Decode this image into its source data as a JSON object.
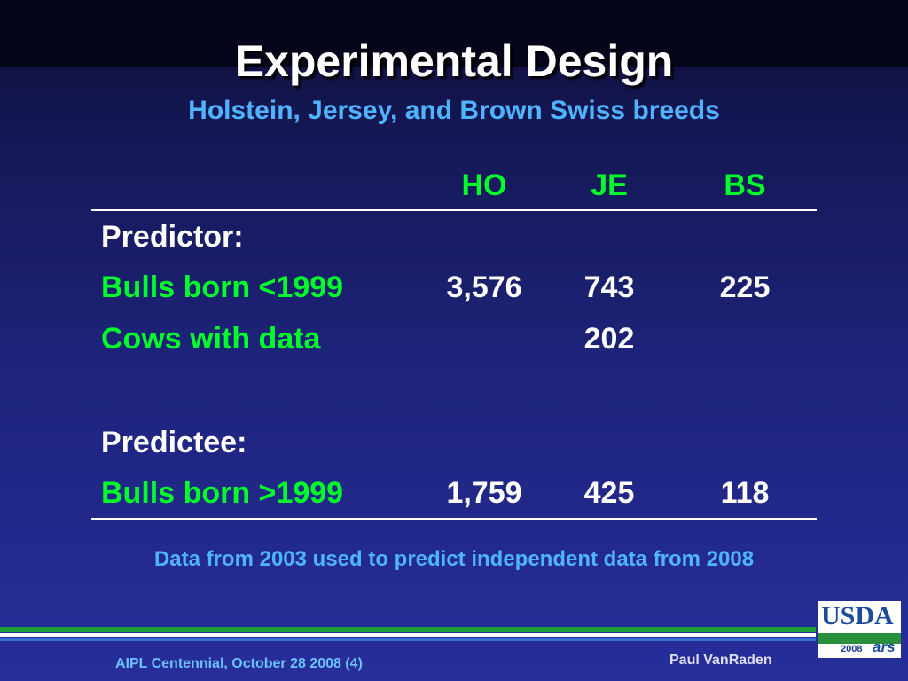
{
  "header": {
    "title": "Experimental Design",
    "subtitle": "Holstein, Jersey, and Brown Swiss breeds"
  },
  "table": {
    "columns": [
      "HO",
      "JE",
      "BS"
    ],
    "rows": [
      {
        "label": "Predictor:",
        "style": "heading",
        "cells": [
          null,
          null,
          null
        ]
      },
      {
        "label": "Bulls born <1999",
        "style": "item",
        "cells": [
          "3,576",
          "743",
          "225"
        ]
      },
      {
        "label": "Cows with data",
        "style": "item",
        "cells": [
          null,
          "202",
          null
        ]
      },
      {
        "label": "Predictee:",
        "style": "heading",
        "cells": [
          null,
          null,
          null
        ]
      },
      {
        "label": "Bulls born >1999",
        "style": "item",
        "cells": [
          "1,759",
          "425",
          "118"
        ]
      }
    ]
  },
  "note": "Data from 2003 used to predict independent data from 2008",
  "footer": {
    "left": "AIPL Centennial, October 28 2008 (4)",
    "right": "Paul VanRaden"
  },
  "logo": {
    "name": "USDA",
    "year": "2008",
    "mark": "ars"
  }
}
